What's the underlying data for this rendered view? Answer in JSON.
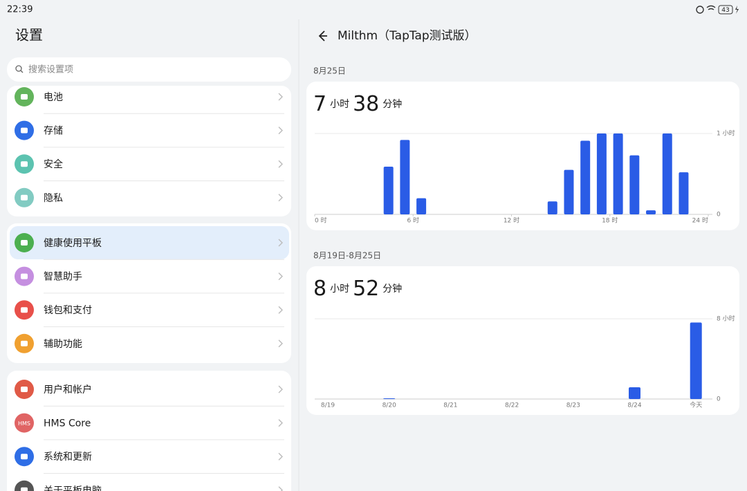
{
  "status_bar": {
    "time": "22:39",
    "battery": "43"
  },
  "sidebar": {
    "title": "设置",
    "search_placeholder": "搜索设置项",
    "groups": [
      [
        {
          "label": "电池",
          "color": "#63b45c"
        },
        {
          "label": "存储",
          "color": "#2f6ee6"
        },
        {
          "label": "安全",
          "color": "#5cc3b0"
        },
        {
          "label": "隐私",
          "color": "#82cbc2"
        }
      ],
      [
        {
          "label": "健康使用平板",
          "color": "#4caf50",
          "selected": true
        },
        {
          "label": "智慧助手",
          "color": "#c58fe0"
        },
        {
          "label": "钱包和支付",
          "color": "#e8504a"
        },
        {
          "label": "辅助功能",
          "color": "#f0a030"
        }
      ],
      [
        {
          "label": "用户和帐户",
          "color": "#e05a47"
        },
        {
          "label": "HMS Core",
          "color": "#e06464",
          "icon_label": "HMS"
        },
        {
          "label": "系统和更新",
          "color": "#2f6ee6"
        },
        {
          "label": "关于平板电脑",
          "color": "#555555"
        }
      ]
    ]
  },
  "header": {
    "title": "Milthm（TapTap测试版）"
  },
  "sections": [
    {
      "date": "8月25日",
      "hours": "7",
      "hours_unit": "小时",
      "minutes": "38",
      "minutes_unit": "分钟"
    },
    {
      "date": "8月19日-8月25日",
      "hours": "8",
      "hours_unit": "小时",
      "minutes": "52",
      "minutes_unit": "分钟"
    }
  ],
  "chart_data": [
    {
      "type": "hourbar",
      "x": [
        4,
        5,
        6,
        14,
        15,
        16,
        17,
        18,
        19,
        20,
        21,
        22
      ],
      "values": [
        0.59,
        0.92,
        0.2,
        0.16,
        0.55,
        0.91,
        1.0,
        1.0,
        0.73,
        0.05,
        1.0,
        0.52
      ],
      "xlim": [
        0,
        24
      ],
      "xticks": [
        {
          "value": 0,
          "label": "0 时"
        },
        {
          "value": 6,
          "label": "6 时"
        },
        {
          "value": 12,
          "label": "12 时"
        },
        {
          "value": 18,
          "label": "18 时"
        },
        {
          "value": 24,
          "label": "24 时"
        }
      ],
      "ylim": [
        0,
        1
      ],
      "yticks": [
        0,
        {
          "value": 1,
          "label": "1 小时"
        }
      ],
      "color": "#2a5ce6"
    },
    {
      "type": "bar",
      "categories": [
        "8/19",
        "8/20",
        "8/21",
        "8/22",
        "8/23",
        "8/24",
        "今天"
      ],
      "values": [
        0,
        0.07,
        0,
        0,
        0,
        1.17,
        7.63
      ],
      "ylim": [
        0,
        8
      ],
      "yticks": [
        0,
        {
          "value": 8,
          "label": "8 小时"
        }
      ],
      "color": "#2a5ce6"
    }
  ]
}
